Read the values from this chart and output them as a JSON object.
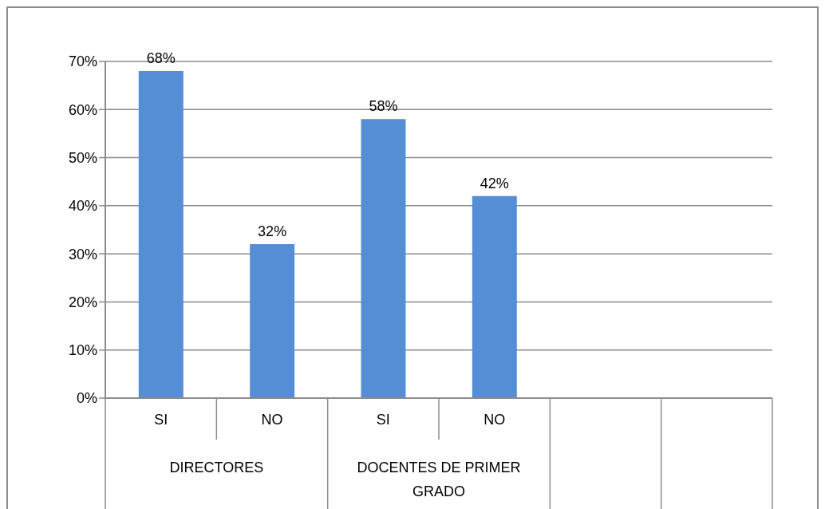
{
  "chart_data": {
    "type": "bar",
    "categories": [
      "SI",
      "NO",
      "SI",
      "NO",
      null,
      null
    ],
    "values": [
      68,
      32,
      58,
      42,
      null,
      null
    ],
    "color": "#558ed5",
    "value_labels": [
      "68%",
      "32%",
      "58%",
      "42%",
      null,
      null
    ],
    "ylim": [
      0,
      70
    ],
    "yticks": [
      {
        "value": 0,
        "label": "0%"
      },
      {
        "value": 10,
        "label": "10%"
      },
      {
        "value": 20,
        "label": "20%"
      },
      {
        "value": 30,
        "label": "30%"
      },
      {
        "value": 40,
        "label": "40%"
      },
      {
        "value": 50,
        "label": "50%"
      },
      {
        "value": 60,
        "label": "60%"
      },
      {
        "value": 70,
        "label": "70%"
      }
    ],
    "grid": "y",
    "annotations": [
      "DIRECTORES",
      "DOCENTES DE PRIMER GRADO"
    ]
  }
}
